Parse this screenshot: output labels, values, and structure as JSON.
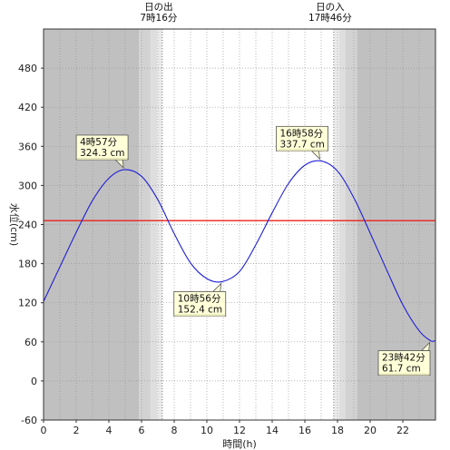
{
  "chart_data": {
    "type": "line",
    "xlabel": "時間(h)",
    "ylabel": "水位(cm)",
    "xlim": [
      0,
      24
    ],
    "ylim": [
      -60,
      540
    ],
    "x_ticks": [
      0,
      2,
      4,
      6,
      8,
      10,
      12,
      14,
      16,
      18,
      20,
      22
    ],
    "y_ticks": [
      -60,
      0,
      60,
      120,
      180,
      240,
      300,
      360,
      420,
      480
    ],
    "reference_line": {
      "y": 246,
      "color": "#e8231a"
    },
    "series": [
      {
        "color": "#1f1fd6",
        "x": [
          0,
          1,
          2,
          3,
          4,
          4.95,
          6,
          7,
          8,
          9,
          10,
          10.93,
          12,
          13,
          14,
          15,
          16,
          16.97,
          18,
          19,
          20,
          21,
          22,
          23,
          23.7,
          24
        ],
        "y": [
          122,
          175,
          228,
          277,
          311,
          324.3,
          314,
          278,
          226,
          181,
          157,
          152.4,
          168,
          209,
          258,
          303,
          331,
          337.7,
          322,
          281,
          227,
          171,
          117,
          77,
          61.7,
          62
        ]
      }
    ],
    "night_shading": [
      {
        "x0": 0,
        "x1": 5.85,
        "color": "#c0c0c0"
      },
      {
        "x0": 5.85,
        "x1": 6.55,
        "color": "#d2d2d2"
      },
      {
        "x0": 6.55,
        "x1": 6.95,
        "color": "#dedede"
      },
      {
        "x0": 6.95,
        "x1": 7.27,
        "color": "#eaeaea"
      },
      {
        "x0": 17.77,
        "x1": 18.1,
        "color": "#eaeaea"
      },
      {
        "x0": 18.1,
        "x1": 18.5,
        "color": "#dedede"
      },
      {
        "x0": 18.5,
        "x1": 19.2,
        "color": "#d2d2d2"
      },
      {
        "x0": 19.2,
        "x1": 24,
        "color": "#c0c0c0"
      }
    ],
    "sun_events": [
      {
        "label": "日の出",
        "time": "7時16分",
        "x": 7.27
      },
      {
        "label": "日の入",
        "time": "17時46分",
        "x": 17.77
      }
    ],
    "annotations": [
      {
        "time": "4時57分",
        "value": "324.3 cm",
        "x": 4.95,
        "y": 324.3,
        "dir": "up"
      },
      {
        "time": "10時56分",
        "value": "152.4 cm",
        "x": 10.93,
        "y": 152.4,
        "dir": "down"
      },
      {
        "time": "16時58分",
        "value": "337.7 cm",
        "x": 16.97,
        "y": 337.7,
        "dir": "up"
      },
      {
        "time": "23時42分",
        "value": "61.7 cm",
        "x": 23.7,
        "y": 61.7,
        "dir": "down"
      }
    ],
    "grid": true
  }
}
